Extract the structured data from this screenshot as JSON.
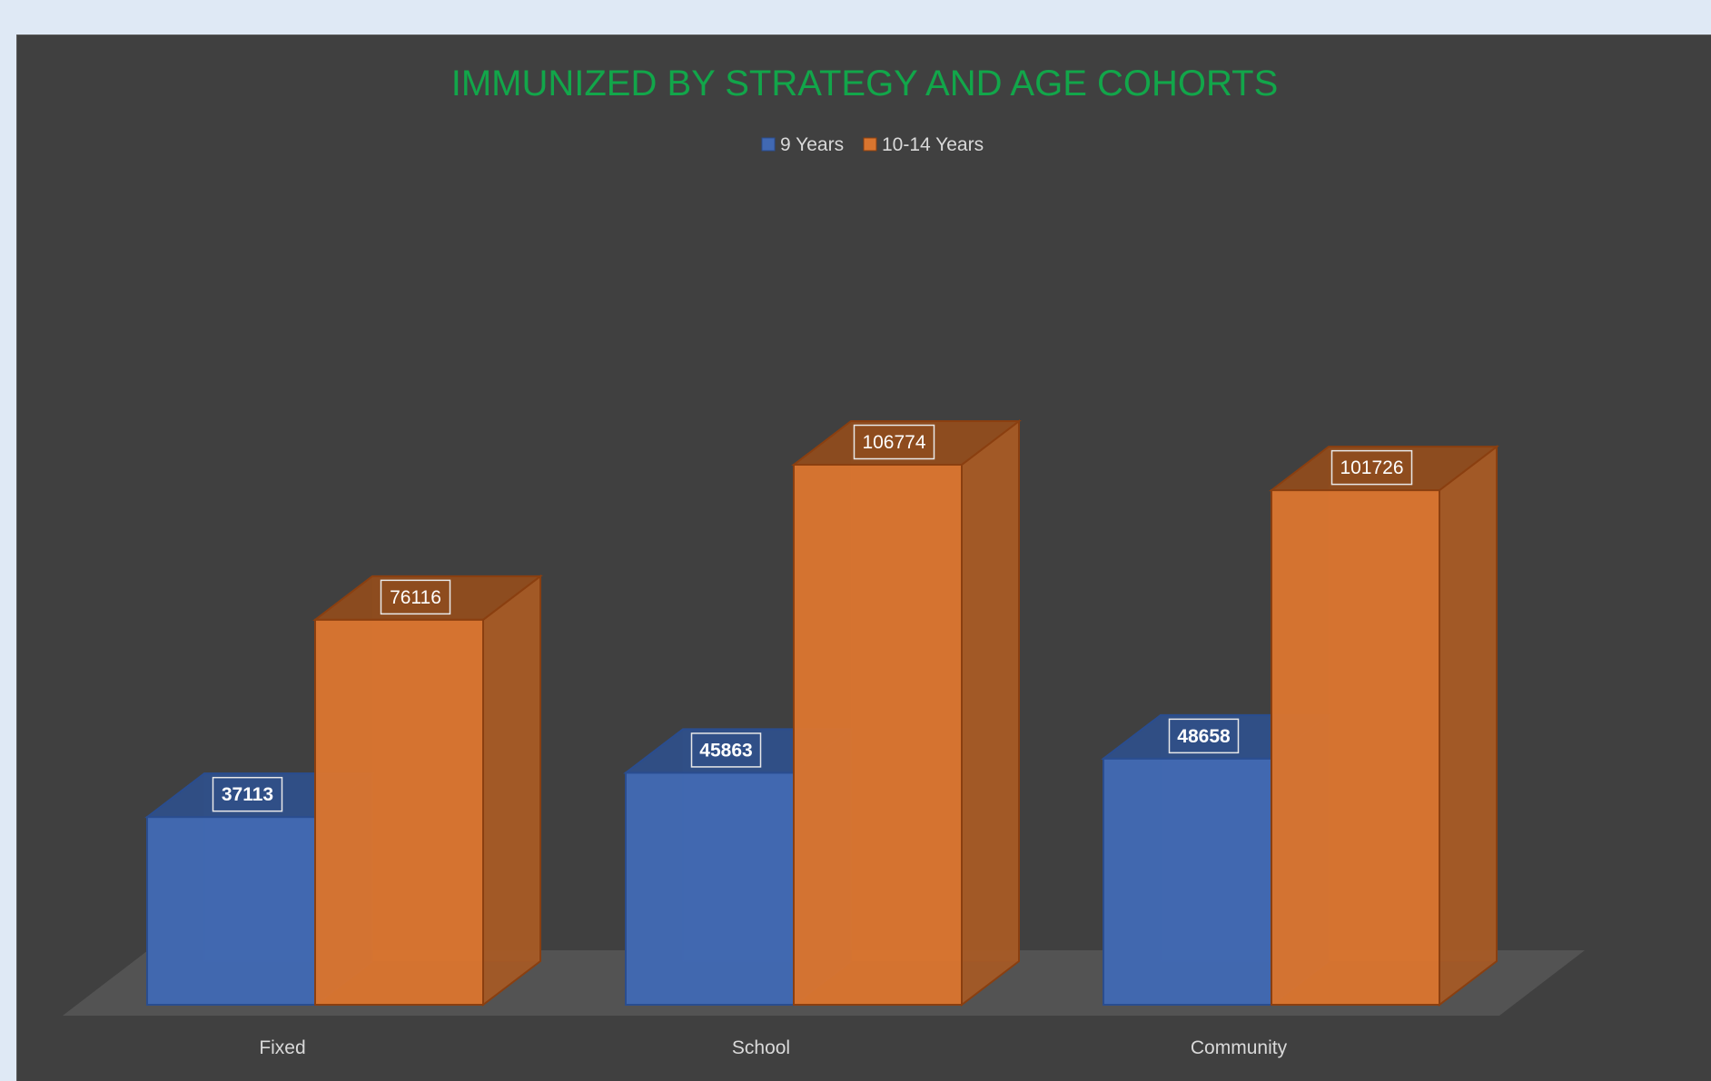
{
  "chart_data": {
    "type": "bar",
    "variant": "3d-clustered-column",
    "title": "IMMUNIZED BY STRATEGY AND AGE COHORTS",
    "categories": [
      "Fixed",
      "School",
      "Community"
    ],
    "series": [
      {
        "name": "9 Years",
        "values": [
          37113,
          45863,
          48658
        ]
      },
      {
        "name": "10-14 Years",
        "values": [
          76116,
          106774,
          101726
        ]
      }
    ],
    "ylim": [
      0,
      160000
    ],
    "grid": false,
    "legend_position": "top",
    "data_labels": true,
    "xlabel": "",
    "ylabel": ""
  },
  "colors": {
    "background": "#404040",
    "page": "#dfe9f5",
    "title": "#12a64a",
    "text": "#d9d9d9",
    "floor": "#535353",
    "series": [
      {
        "front": "#4169b3",
        "top": "#2f4f88",
        "side": "#2f4f88",
        "edge": "#2a4d8f"
      },
      {
        "front": "#d9752f",
        "top": "#8f4c1d",
        "side": "#a75a25",
        "edge": "#8a3f10"
      }
    ]
  }
}
